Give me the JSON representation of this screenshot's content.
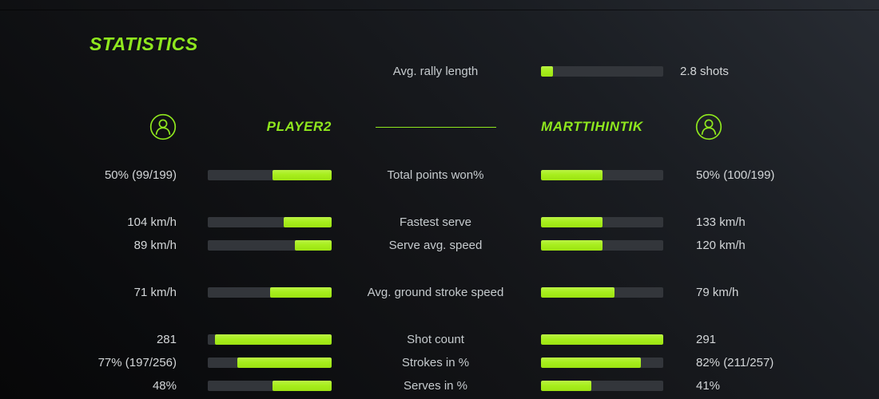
{
  "title": "STATISTICS",
  "colors": {
    "accent_text": "#8fe71e",
    "bar_fill": "#a7ee1d",
    "bar_track": "#33363b",
    "value_text": "#d3d6d8",
    "background_dark": "#0a0b0d",
    "background_light": "#282c33"
  },
  "rally": {
    "label": "Avg. rally length",
    "value": "2.8 shots",
    "pct": 10
  },
  "header": {
    "left_player": "PLAYER2",
    "right_player": "MARTTIHINTIK",
    "left_icon": "person-icon",
    "right_icon": "person-icon"
  },
  "rows": [
    {
      "label": "Total points won%",
      "left_value": "50% (99/199)",
      "right_value": "50% (100/199)",
      "left_pct": 48,
      "right_pct": 50
    },
    {
      "label": "Fastest serve",
      "left_value": "104 km/h",
      "right_value": "133 km/h",
      "left_pct": 39,
      "right_pct": 50
    },
    {
      "label": "Serve avg. speed",
      "left_value": "89 km/h",
      "right_value": "120 km/h",
      "left_pct": 30,
      "right_pct": 50
    },
    {
      "label": "Avg. ground stroke speed",
      "left_value": "71 km/h",
      "right_value": "79 km/h",
      "left_pct": 50,
      "right_pct": 60
    },
    {
      "label": "Shot count",
      "left_value": "281",
      "right_value": "291",
      "left_pct": 94,
      "right_pct": 100
    },
    {
      "label": "Strokes in %",
      "left_value": "77% (197/256)",
      "right_value": "82% (211/257)",
      "left_pct": 76,
      "right_pct": 82
    },
    {
      "label": "Serves in %",
      "left_value": "48%",
      "right_value": "41%",
      "left_pct": 48,
      "right_pct": 41
    }
  ]
}
